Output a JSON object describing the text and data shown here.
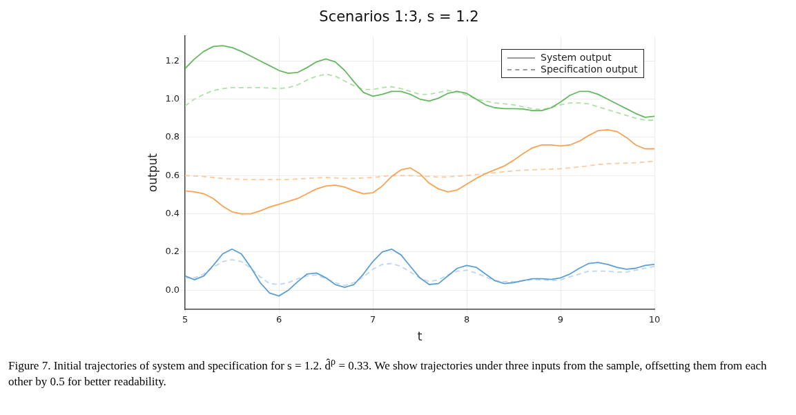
{
  "chart_data": {
    "type": "line",
    "title": "Scenarios 1:3, s = 1.2",
    "xlabel": "t",
    "ylabel": "output",
    "x": [
      5,
      5.1,
      5.2,
      5.3,
      5.4,
      5.5,
      5.6,
      5.7,
      5.8,
      5.9,
      6,
      6.1,
      6.2,
      6.3,
      6.4,
      6.5,
      6.6,
      6.7,
      6.8,
      6.9,
      7,
      7.1,
      7.2,
      7.3,
      7.4,
      7.5,
      7.6,
      7.7,
      7.8,
      7.9,
      8,
      8.1,
      8.2,
      8.3,
      8.4,
      8.5,
      8.6,
      8.7,
      8.8,
      8.9,
      9,
      9.1,
      9.2,
      9.3,
      9.4,
      9.5,
      9.6,
      9.7,
      9.8,
      9.9,
      10
    ],
    "xlim": [
      5,
      10
    ],
    "xticks": [
      5,
      6,
      7,
      8,
      9,
      10
    ],
    "ylim": [
      -0.1,
      1.33
    ],
    "yticks": [
      {
        "value": 0,
        "label": "0.0"
      },
      0.2,
      0.4,
      0.6,
      0.8,
      {
        "value": 1,
        "label": "1.0"
      },
      1.2
    ],
    "grid": true,
    "series": [
      {
        "color": "#5b9fd4",
        "line_style": "solid",
        "values": [
          0.075,
          0.055,
          0.075,
          0.13,
          0.19,
          0.215,
          0.19,
          0.12,
          0.04,
          -0.015,
          -0.03,
          0.0,
          0.045,
          0.085,
          0.09,
          0.065,
          0.03,
          0.015,
          0.03,
          0.085,
          0.15,
          0.2,
          0.215,
          0.185,
          0.125,
          0.065,
          0.03,
          0.035,
          0.075,
          0.115,
          0.13,
          0.12,
          0.085,
          0.05,
          0.035,
          0.04,
          0.05,
          0.06,
          0.06,
          0.057,
          0.065,
          0.085,
          0.115,
          0.14,
          0.145,
          0.135,
          0.12,
          0.11,
          0.115,
          0.13,
          0.135
        ]
      },
      {
        "color": "#bed6f0",
        "line_style": "dashed",
        "values": [
          0.065,
          0.065,
          0.085,
          0.12,
          0.15,
          0.16,
          0.15,
          0.115,
          0.07,
          0.035,
          0.03,
          0.04,
          0.06,
          0.075,
          0.08,
          0.06,
          0.04,
          0.025,
          0.04,
          0.07,
          0.11,
          0.135,
          0.14,
          0.125,
          0.095,
          0.065,
          0.045,
          0.055,
          0.08,
          0.1,
          0.105,
          0.09,
          0.07,
          0.05,
          0.045,
          0.045,
          0.05,
          0.055,
          0.055,
          0.05,
          0.055,
          0.07,
          0.085,
          0.1,
          0.1,
          0.1,
          0.095,
          0.095,
          0.105,
          0.115,
          0.125
        ]
      },
      {
        "color": "#f9a252",
        "line_style": "solid",
        "values": [
          0.52,
          0.515,
          0.505,
          0.48,
          0.44,
          0.41,
          0.4,
          0.4,
          0.415,
          0.435,
          0.45,
          0.465,
          0.48,
          0.505,
          0.53,
          0.545,
          0.55,
          0.54,
          0.52,
          0.505,
          0.51,
          0.545,
          0.595,
          0.63,
          0.64,
          0.61,
          0.56,
          0.53,
          0.515,
          0.525,
          0.555,
          0.585,
          0.61,
          0.63,
          0.65,
          0.68,
          0.715,
          0.745,
          0.76,
          0.76,
          0.755,
          0.76,
          0.78,
          0.81,
          0.835,
          0.84,
          0.83,
          0.8,
          0.76,
          0.74,
          0.74
        ]
      },
      {
        "color": "#fdcba0",
        "line_style": "dashed",
        "values": [
          0.6,
          0.598,
          0.595,
          0.59,
          0.585,
          0.582,
          0.58,
          0.58,
          0.58,
          0.58,
          0.58,
          0.58,
          0.582,
          0.585,
          0.588,
          0.59,
          0.588,
          0.585,
          0.585,
          0.588,
          0.59,
          0.595,
          0.6,
          0.6,
          0.6,
          0.598,
          0.595,
          0.592,
          0.593,
          0.597,
          0.6,
          0.605,
          0.61,
          0.615,
          0.62,
          0.625,
          0.628,
          0.63,
          0.632,
          0.634,
          0.636,
          0.64,
          0.645,
          0.652,
          0.658,
          0.662,
          0.664,
          0.665,
          0.667,
          0.671,
          0.675
        ]
      },
      {
        "color": "#63b95f",
        "line_style": "solid",
        "values": [
          1.16,
          1.21,
          1.25,
          1.275,
          1.28,
          1.27,
          1.25,
          1.225,
          1.2,
          1.175,
          1.15,
          1.135,
          1.14,
          1.165,
          1.195,
          1.21,
          1.195,
          1.15,
          1.09,
          1.035,
          1.015,
          1.025,
          1.04,
          1.04,
          1.025,
          1.0,
          0.99,
          1.005,
          1.03,
          1.04,
          1.03,
          1.0,
          0.97,
          0.955,
          0.95,
          0.95,
          0.948,
          0.94,
          0.94,
          0.955,
          0.985,
          1.02,
          1.04,
          1.04,
          1.025,
          1.0,
          0.975,
          0.95,
          0.925,
          0.905,
          0.91
        ]
      },
      {
        "color": "#ade1a6",
        "line_style": "dashed",
        "values": [
          0.965,
          1.0,
          1.025,
          1.045,
          1.055,
          1.06,
          1.06,
          1.06,
          1.06,
          1.058,
          1.055,
          1.06,
          1.075,
          1.1,
          1.12,
          1.13,
          1.12,
          1.095,
          1.07,
          1.05,
          1.05,
          1.06,
          1.065,
          1.055,
          1.04,
          1.025,
          1.025,
          1.035,
          1.045,
          1.04,
          1.02,
          1.0,
          0.99,
          0.98,
          0.975,
          0.97,
          0.96,
          0.95,
          0.945,
          0.955,
          0.97,
          0.98,
          0.98,
          0.975,
          0.96,
          0.945,
          0.93,
          0.915,
          0.9,
          0.89,
          0.89
        ]
      }
    ],
    "annotations": [
      "System output",
      "Specification output",
      "Figure 7. Initial trajectories of system and specification for s = 1.2. d̂$^{ρ}$ = 0.33. We show trajectories under three inputs from the sample, offsetting them from each other by 0.5 for better readability."
    ]
  }
}
